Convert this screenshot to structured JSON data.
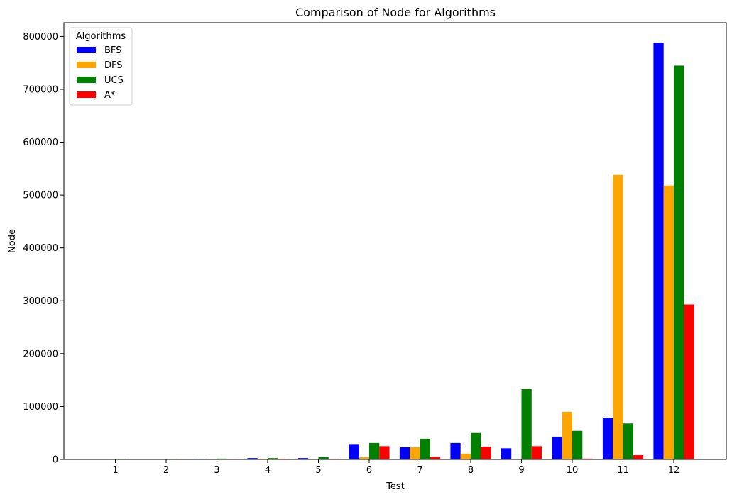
{
  "chart_data": {
    "type": "bar",
    "title": "Comparison of Node for Algorithms",
    "xlabel": "Test",
    "ylabel": "Node",
    "categories": [
      "1",
      "2",
      "3",
      "4",
      "5",
      "6",
      "7",
      "8",
      "9",
      "10",
      "11",
      "12"
    ],
    "ylim": [
      0,
      826000
    ],
    "yticks": [
      0,
      100000,
      200000,
      300000,
      400000,
      500000,
      600000,
      700000,
      800000
    ],
    "grid": false,
    "legend": {
      "title": "Algorithms",
      "position": "top-left"
    },
    "series": [
      {
        "name": "BFS",
        "color": "#0000ff",
        "values": [
          100,
          200,
          1200,
          2500,
          2500,
          29000,
          23000,
          31000,
          21000,
          43000,
          79000,
          788000
        ]
      },
      {
        "name": "DFS",
        "color": "#ffa500",
        "values": [
          100,
          300,
          600,
          1000,
          300,
          4000,
          23000,
          11000,
          200,
          90000,
          538000,
          518000
        ]
      },
      {
        "name": "UCS",
        "color": "#008000",
        "values": [
          1000,
          1000,
          1500,
          2500,
          4500,
          31000,
          39000,
          50000,
          133000,
          54000,
          68000,
          745000
        ]
      },
      {
        "name": "A*",
        "color": "#ff0000",
        "values": [
          100,
          700,
          800,
          1200,
          1000,
          25000,
          5000,
          24000,
          25000,
          1500,
          8000,
          293000
        ]
      }
    ]
  }
}
